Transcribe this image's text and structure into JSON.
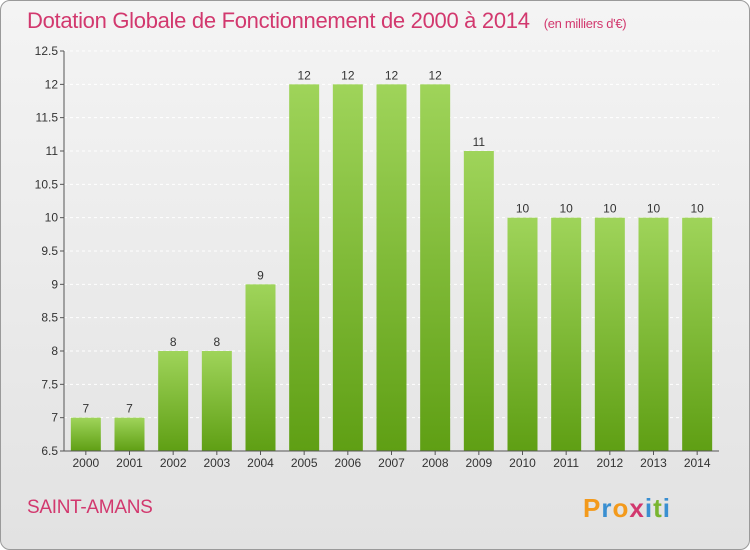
{
  "header": {
    "title": "Dotation Globale de Fonctionnement de 2000 à 2014",
    "unit": "(en milliers d'€)"
  },
  "footer": {
    "commune": "SAINT-AMANS",
    "brand": "Proxiti"
  },
  "colors": {
    "title": "#d2386e",
    "bar_light": "#9fd45a",
    "bar_dark": "#5f9f14",
    "brand_letters": [
      "#f39a1c",
      "#3a8fd1",
      "#f39a1c",
      "#d2386e",
      "#3a8fd1",
      "#79b530",
      "#3a8fd1"
    ]
  },
  "chart_data": {
    "type": "bar",
    "title": "Dotation Globale de Fonctionnement de 2000 à 2014",
    "subtitle": "(en milliers d'€)",
    "xlabel": "",
    "ylabel": "",
    "categories": [
      "2000",
      "2001",
      "2002",
      "2003",
      "2004",
      "2005",
      "2006",
      "2007",
      "2008",
      "2009",
      "2010",
      "2011",
      "2012",
      "2013",
      "2014"
    ],
    "values": [
      7,
      7,
      8,
      8,
      9,
      12,
      12,
      12,
      12,
      11,
      10,
      10,
      10,
      10,
      10
    ],
    "ylim": [
      6.5,
      12.5
    ],
    "yticks": [
      6.5,
      7,
      7.5,
      8,
      8.5,
      9,
      9.5,
      10,
      10.5,
      11,
      11.5,
      12,
      12.5
    ],
    "grid": true,
    "data_labels": true
  }
}
